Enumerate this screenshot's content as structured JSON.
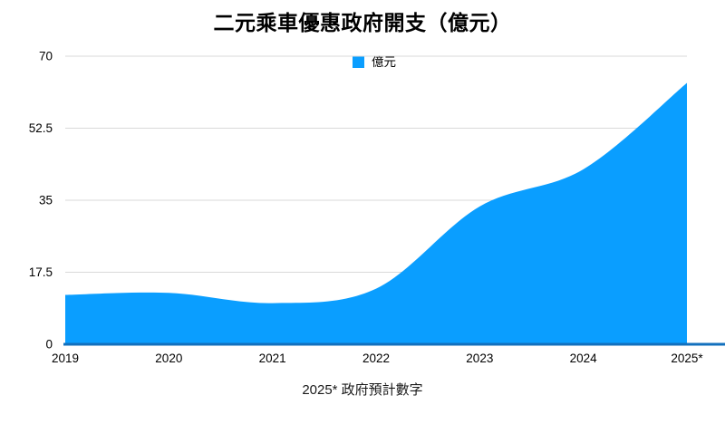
{
  "title": "二元乘車優惠政府開支（億元）",
  "footer": "2025* 政府預計數字",
  "chart_data": {
    "type": "area",
    "title": "二元乘車優惠政府開支（億元）",
    "categories": [
      "2019",
      "2020",
      "2021",
      "2022",
      "2023",
      "2024",
      "2025*"
    ],
    "series": [
      {
        "name": "億元",
        "values": [
          12,
          12.5,
          10,
          13.5,
          33.5,
          42.5,
          63.5
        ]
      }
    ],
    "xlabel": "",
    "ylabel": "",
    "ylim": [
      0,
      70
    ],
    "yticks": [
      0,
      17.5,
      35,
      52.5,
      70
    ],
    "ytick_labels": [
      "0",
      "17.5",
      "35",
      "52.5",
      "70"
    ],
    "grid": true,
    "legend": {
      "label": "億元",
      "position": "top-center"
    },
    "annotation": "2025* 政府預計數字",
    "colors": {
      "area": "#0A9EFF",
      "baseline": "#1270BD",
      "gridline": "#D9D9D9",
      "text": "#000000"
    }
  }
}
